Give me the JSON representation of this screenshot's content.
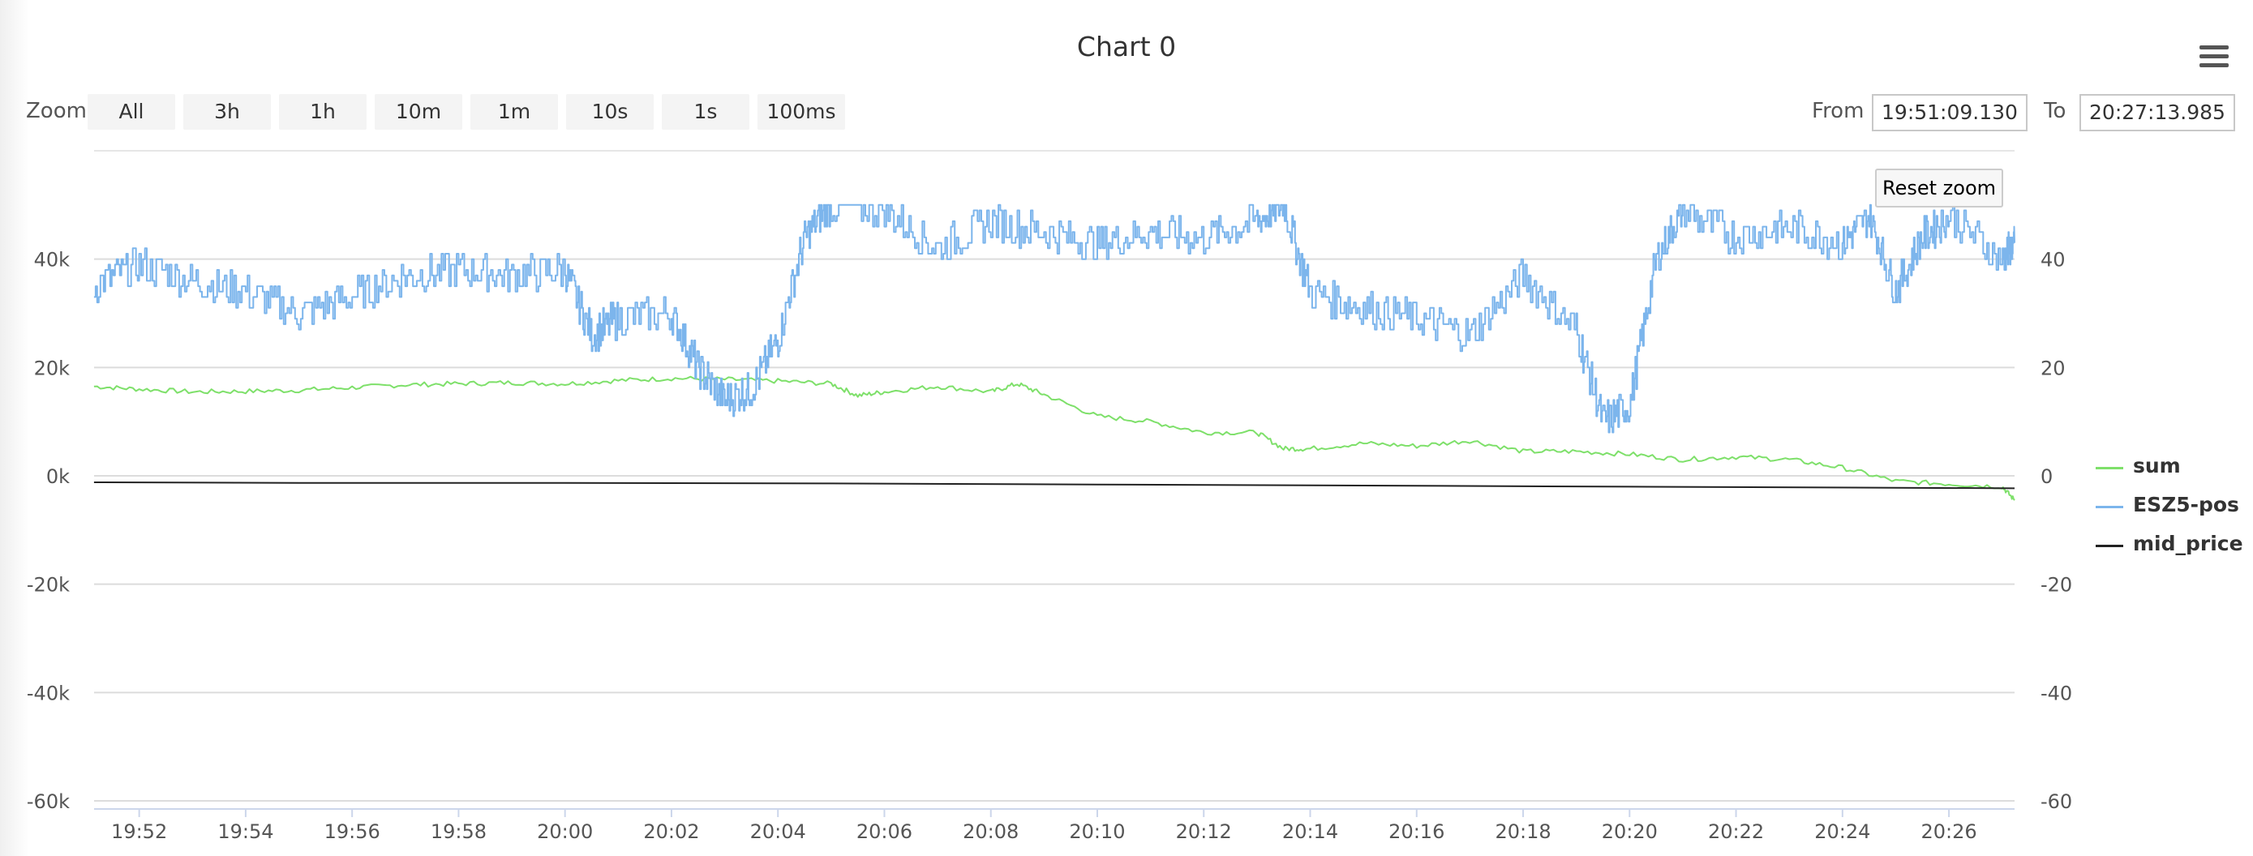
{
  "chart": {
    "title": "Chart 0",
    "zoom_label": "Zoom",
    "zoom_buttons": [
      "All",
      "3h",
      "1h",
      "10m",
      "1m",
      "10s",
      "1s",
      "100ms"
    ],
    "from_label": "From",
    "from_value": "19:51:09.130",
    "to_label": "To",
    "to_value": "20:27:13.985",
    "reset_zoom_label": "Reset zoom",
    "menu_icon": "hamburger-menu-icon"
  },
  "chart_data": {
    "type": "line",
    "title": "Chart 0",
    "x_range": [
      "19:51:09.130",
      "20:27:13.985"
    ],
    "x_ticks": [
      "19:52",
      "19:54",
      "19:56",
      "19:58",
      "20:00",
      "20:02",
      "20:04",
      "20:06",
      "20:08",
      "20:10",
      "20:12",
      "20:14",
      "20:16",
      "20:18",
      "20:20",
      "20:22",
      "20:24",
      "20:26"
    ],
    "y_left": {
      "ticks": [
        "-60k",
        "-40k",
        "-20k",
        "0k",
        "20k",
        "40k"
      ],
      "ylim": [
        -60000,
        60000
      ]
    },
    "y_right": {
      "ticks": [
        "-60",
        "-40",
        "-20",
        "0",
        "20",
        "40"
      ],
      "ylim": [
        -60,
        60
      ]
    },
    "grid": true,
    "legend_position": "right",
    "series": [
      {
        "name": "sum",
        "axis": "left",
        "color": "#7ee06a",
        "points": [
          [
            "19:51:09",
            16500
          ],
          [
            "19:52:00",
            16000
          ],
          [
            "19:53:00",
            15500
          ],
          [
            "19:54:00",
            15600
          ],
          [
            "19:55:00",
            15800
          ],
          [
            "19:56:00",
            16300
          ],
          [
            "19:57:00",
            16800
          ],
          [
            "19:58:00",
            17000
          ],
          [
            "19:59:00",
            17200
          ],
          [
            "20:00:00",
            17000
          ],
          [
            "20:01:00",
            17600
          ],
          [
            "20:02:00",
            18000
          ],
          [
            "20:03:00",
            17800
          ],
          [
            "20:04:00",
            17500
          ],
          [
            "20:05:00",
            17000
          ],
          [
            "20:05:30",
            14800
          ],
          [
            "20:06:00",
            15500
          ],
          [
            "20:07:00",
            16500
          ],
          [
            "20:08:00",
            15500
          ],
          [
            "20:08:30",
            17000
          ],
          [
            "20:09:00",
            15000
          ],
          [
            "20:10:00",
            11000
          ],
          [
            "20:11:00",
            10000
          ],
          [
            "20:12:00",
            8000
          ],
          [
            "20:13:00",
            8000
          ],
          [
            "20:13:30",
            5000
          ],
          [
            "20:14:00",
            5000
          ],
          [
            "20:15:00",
            6000
          ],
          [
            "20:16:00",
            5500
          ],
          [
            "20:17:00",
            6500
          ],
          [
            "20:18:00",
            4500
          ],
          [
            "20:19:00",
            4500
          ],
          [
            "20:20:00",
            4000
          ],
          [
            "20:21:00",
            3000
          ],
          [
            "20:22:00",
            3500
          ],
          [
            "20:23:00",
            3000
          ],
          [
            "20:24:00",
            1500
          ],
          [
            "20:25:00",
            -1000
          ],
          [
            "20:26:00",
            -1500
          ],
          [
            "20:27:00",
            -2000
          ],
          [
            "20:27:14",
            -4500
          ]
        ]
      },
      {
        "name": "ESZ5-pos",
        "axis": "right",
        "color": "#7cb5ec",
        "points": [
          [
            "19:51:09",
            35
          ],
          [
            "19:52:00",
            39
          ],
          [
            "19:53:00",
            36
          ],
          [
            "19:54:00",
            34
          ],
          [
            "19:55:00",
            30
          ],
          [
            "19:56:00",
            33
          ],
          [
            "19:57:00",
            37
          ],
          [
            "19:58:00",
            38
          ],
          [
            "19:59:00",
            37
          ],
          [
            "20:00:00",
            38
          ],
          [
            "20:00:30",
            26
          ],
          [
            "20:01:00",
            29
          ],
          [
            "20:02:00",
            30
          ],
          [
            "20:02:30",
            20
          ],
          [
            "20:03:00",
            14
          ],
          [
            "20:03:30",
            16
          ],
          [
            "20:04:00",
            25
          ],
          [
            "20:04:30",
            44
          ],
          [
            "20:05:00",
            50
          ],
          [
            "20:06:00",
            49
          ],
          [
            "20:07:00",
            42
          ],
          [
            "20:08:00",
            47
          ],
          [
            "20:09:00",
            45
          ],
          [
            "20:10:00",
            43
          ],
          [
            "20:11:00",
            45
          ],
          [
            "20:12:00",
            44
          ],
          [
            "20:13:00",
            47
          ],
          [
            "20:13:30",
            50
          ],
          [
            "20:14:00",
            34
          ],
          [
            "20:15:00",
            31
          ],
          [
            "20:16:00",
            29
          ],
          [
            "20:17:00",
            26
          ],
          [
            "20:18:00",
            37
          ],
          [
            "20:19:00",
            27
          ],
          [
            "20:19:30",
            10
          ],
          [
            "20:20:00",
            13
          ],
          [
            "20:20:30",
            40
          ],
          [
            "20:21:00",
            49
          ],
          [
            "20:22:00",
            44
          ],
          [
            "20:23:00",
            46
          ],
          [
            "20:24:00",
            43
          ],
          [
            "20:24:30",
            48
          ],
          [
            "20:25:00",
            34
          ],
          [
            "20:25:30",
            44
          ],
          [
            "20:26:00",
            48
          ],
          [
            "20:27:00",
            40
          ],
          [
            "20:27:14",
            43
          ]
        ]
      },
      {
        "name": "mid_price",
        "axis": "left",
        "color": "#222222",
        "points": [
          [
            "19:51:09",
            -1200
          ],
          [
            "19:55:00",
            -1300
          ],
          [
            "20:00:00",
            -1300
          ],
          [
            "20:05:00",
            -1400
          ],
          [
            "20:10:00",
            -1600
          ],
          [
            "20:15:00",
            -1800
          ],
          [
            "20:20:00",
            -2000
          ],
          [
            "20:25:00",
            -2200
          ],
          [
            "20:27:14",
            -2300
          ]
        ]
      }
    ]
  }
}
